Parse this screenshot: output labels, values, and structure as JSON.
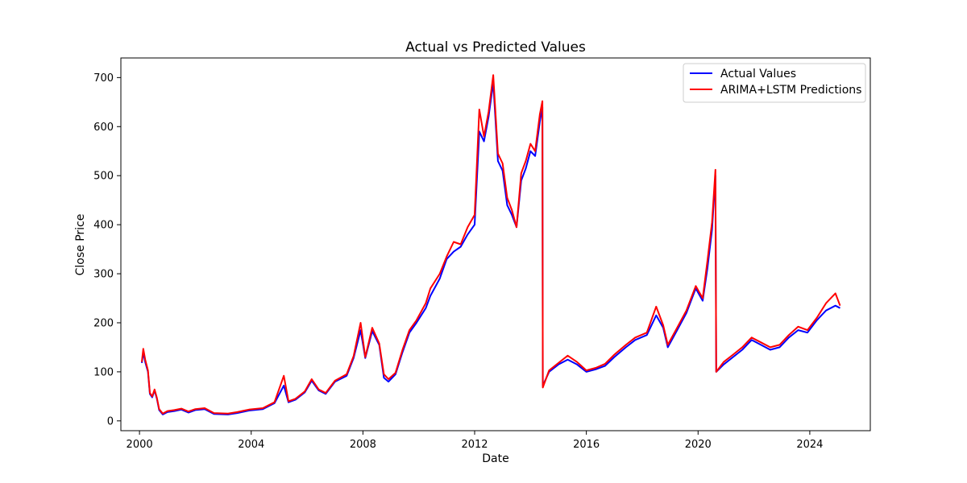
{
  "chart_data": {
    "type": "line",
    "title": "Actual vs Predicted Values",
    "xlabel": "Date",
    "ylabel": "Close Price",
    "xlim": [
      "1999-05-01",
      "2026-03-01"
    ],
    "ylim": [
      -20,
      740
    ],
    "x_ticks": [
      "2000",
      "2004",
      "2008",
      "2012",
      "2016",
      "2020",
      "2024"
    ],
    "y_ticks": [
      0,
      100,
      200,
      300,
      400,
      500,
      600,
      700
    ],
    "grid": false,
    "legend_position": "top-right",
    "series": [
      {
        "name": "Actual Values",
        "color": "#0000ff",
        "points": [
          [
            "2000-02-01",
            118
          ],
          [
            "2000-02-20",
            140
          ],
          [
            "2000-03-15",
            120
          ],
          [
            "2000-04-20",
            100
          ],
          [
            "2000-05-15",
            55
          ],
          [
            "2000-06-15",
            48
          ],
          [
            "2000-07-15",
            62
          ],
          [
            "2000-08-15",
            45
          ],
          [
            "2000-09-15",
            22
          ],
          [
            "2000-11-01",
            13
          ],
          [
            "2001-01-01",
            18
          ],
          [
            "2001-04-01",
            20
          ],
          [
            "2001-07-01",
            23
          ],
          [
            "2001-10-01",
            17
          ],
          [
            "2002-01-01",
            22
          ],
          [
            "2002-05-01",
            24
          ],
          [
            "2002-09-01",
            14
          ],
          [
            "2003-03-01",
            13
          ],
          [
            "2003-07-01",
            16
          ],
          [
            "2003-12-01",
            21
          ],
          [
            "2004-06-01",
            24
          ],
          [
            "2004-11-01",
            36
          ],
          [
            "2005-03-01",
            72
          ],
          [
            "2005-05-01",
            38
          ],
          [
            "2005-08-01",
            43
          ],
          [
            "2005-12-01",
            58
          ],
          [
            "2006-03-01",
            82
          ],
          [
            "2006-06-01",
            62
          ],
          [
            "2006-09-01",
            55
          ],
          [
            "2007-01-01",
            80
          ],
          [
            "2007-06-01",
            92
          ],
          [
            "2007-09-01",
            128
          ],
          [
            "2007-12-01",
            185
          ],
          [
            "2008-02-01",
            128
          ],
          [
            "2008-05-01",
            183
          ],
          [
            "2008-08-01",
            155
          ],
          [
            "2008-10-01",
            88
          ],
          [
            "2008-12-01",
            80
          ],
          [
            "2009-03-01",
            95
          ],
          [
            "2009-06-01",
            140
          ],
          [
            "2009-09-01",
            180
          ],
          [
            "2009-12-01",
            200
          ],
          [
            "2010-04-01",
            230
          ],
          [
            "2010-06-01",
            255
          ],
          [
            "2010-10-01",
            290
          ],
          [
            "2011-01-01",
            330
          ],
          [
            "2011-04-01",
            345
          ],
          [
            "2011-07-01",
            355
          ],
          [
            "2011-10-01",
            380
          ],
          [
            "2012-01-01",
            400
          ],
          [
            "2012-03-01",
            590
          ],
          [
            "2012-05-01",
            570
          ],
          [
            "2012-07-01",
            620
          ],
          [
            "2012-09-01",
            690
          ],
          [
            "2012-11-01",
            530
          ],
          [
            "2013-01-01",
            510
          ],
          [
            "2013-03-01",
            440
          ],
          [
            "2013-05-01",
            420
          ],
          [
            "2013-07-01",
            395
          ],
          [
            "2013-09-01",
            490
          ],
          [
            "2013-11-01",
            515
          ],
          [
            "2014-01-01",
            550
          ],
          [
            "2014-03-01",
            540
          ],
          [
            "2014-05-01",
            610
          ],
          [
            "2014-06-05",
            640
          ],
          [
            "2014-06-10",
            72
          ],
          [
            "2014-09-01",
            100
          ],
          [
            "2015-01-01",
            115
          ],
          [
            "2015-05-01",
            125
          ],
          [
            "2015-09-01",
            115
          ],
          [
            "2016-01-01",
            100
          ],
          [
            "2016-05-01",
            105
          ],
          [
            "2016-09-01",
            112
          ],
          [
            "2017-01-01",
            130
          ],
          [
            "2017-06-01",
            150
          ],
          [
            "2017-10-01",
            165
          ],
          [
            "2018-03-01",
            175
          ],
          [
            "2018-07-01",
            215
          ],
          [
            "2018-10-01",
            190
          ],
          [
            "2018-12-01",
            150
          ],
          [
            "2019-04-01",
            185
          ],
          [
            "2019-08-01",
            220
          ],
          [
            "2019-12-01",
            270
          ],
          [
            "2020-03-01",
            245
          ],
          [
            "2020-05-01",
            310
          ],
          [
            "2020-07-01",
            390
          ],
          [
            "2020-08-15",
            500
          ],
          [
            "2020-08-25",
            100
          ],
          [
            "2020-12-01",
            115
          ],
          [
            "2021-04-01",
            130
          ],
          [
            "2021-08-01",
            145
          ],
          [
            "2021-12-01",
            165
          ],
          [
            "2022-04-01",
            155
          ],
          [
            "2022-08-01",
            145
          ],
          [
            "2022-12-01",
            150
          ],
          [
            "2023-04-01",
            170
          ],
          [
            "2023-08-01",
            185
          ],
          [
            "2023-12-01",
            180
          ],
          [
            "2024-04-01",
            205
          ],
          [
            "2024-08-01",
            225
          ],
          [
            "2024-12-01",
            235
          ],
          [
            "2025-02-01",
            230
          ]
        ]
      },
      {
        "name": "ARIMA+LSTM Predictions",
        "color": "#ff0000",
        "points": [
          [
            "2000-02-01",
            120
          ],
          [
            "2000-02-20",
            147
          ],
          [
            "2000-03-15",
            125
          ],
          [
            "2000-04-20",
            103
          ],
          [
            "2000-05-15",
            57
          ],
          [
            "2000-06-15",
            50
          ],
          [
            "2000-07-15",
            64
          ],
          [
            "2000-08-15",
            47
          ],
          [
            "2000-09-15",
            24
          ],
          [
            "2000-11-01",
            15
          ],
          [
            "2001-01-01",
            20
          ],
          [
            "2001-04-01",
            22
          ],
          [
            "2001-07-01",
            25
          ],
          [
            "2001-10-01",
            19
          ],
          [
            "2002-01-01",
            24
          ],
          [
            "2002-05-01",
            26
          ],
          [
            "2002-09-01",
            16
          ],
          [
            "2003-03-01",
            15
          ],
          [
            "2003-07-01",
            18
          ],
          [
            "2003-12-01",
            23
          ],
          [
            "2004-06-01",
            26
          ],
          [
            "2004-11-01",
            38
          ],
          [
            "2005-03-01",
            92
          ],
          [
            "2005-05-01",
            40
          ],
          [
            "2005-08-01",
            45
          ],
          [
            "2005-12-01",
            60
          ],
          [
            "2006-03-01",
            85
          ],
          [
            "2006-06-01",
            64
          ],
          [
            "2006-09-01",
            57
          ],
          [
            "2007-01-01",
            82
          ],
          [
            "2007-06-01",
            95
          ],
          [
            "2007-09-01",
            132
          ],
          [
            "2007-12-01",
            200
          ],
          [
            "2008-02-01",
            130
          ],
          [
            "2008-05-01",
            190
          ],
          [
            "2008-08-01",
            158
          ],
          [
            "2008-10-01",
            95
          ],
          [
            "2008-12-01",
            85
          ],
          [
            "2009-03-01",
            98
          ],
          [
            "2009-06-01",
            145
          ],
          [
            "2009-09-01",
            185
          ],
          [
            "2009-12-01",
            205
          ],
          [
            "2010-04-01",
            240
          ],
          [
            "2010-06-01",
            270
          ],
          [
            "2010-10-01",
            300
          ],
          [
            "2011-01-01",
            335
          ],
          [
            "2011-04-01",
            365
          ],
          [
            "2011-07-01",
            360
          ],
          [
            "2011-10-01",
            395
          ],
          [
            "2012-01-01",
            420
          ],
          [
            "2012-03-01",
            635
          ],
          [
            "2012-05-01",
            580
          ],
          [
            "2012-07-01",
            630
          ],
          [
            "2012-09-01",
            705
          ],
          [
            "2012-11-01",
            545
          ],
          [
            "2013-01-01",
            525
          ],
          [
            "2013-03-01",
            455
          ],
          [
            "2013-05-01",
            430
          ],
          [
            "2013-07-01",
            395
          ],
          [
            "2013-09-01",
            505
          ],
          [
            "2013-11-01",
            530
          ],
          [
            "2014-01-01",
            565
          ],
          [
            "2014-03-01",
            550
          ],
          [
            "2014-05-01",
            625
          ],
          [
            "2014-06-05",
            652
          ],
          [
            "2014-06-10",
            68
          ],
          [
            "2014-09-01",
            103
          ],
          [
            "2015-01-01",
            118
          ],
          [
            "2015-05-01",
            133
          ],
          [
            "2015-09-01",
            120
          ],
          [
            "2016-01-01",
            103
          ],
          [
            "2016-05-01",
            108
          ],
          [
            "2016-09-01",
            116
          ],
          [
            "2017-01-01",
            135
          ],
          [
            "2017-06-01",
            155
          ],
          [
            "2017-10-01",
            170
          ],
          [
            "2018-03-01",
            180
          ],
          [
            "2018-07-01",
            233
          ],
          [
            "2018-10-01",
            195
          ],
          [
            "2018-12-01",
            155
          ],
          [
            "2019-04-01",
            190
          ],
          [
            "2019-08-01",
            225
          ],
          [
            "2019-12-01",
            275
          ],
          [
            "2020-03-01",
            250
          ],
          [
            "2020-05-01",
            325
          ],
          [
            "2020-07-01",
            405
          ],
          [
            "2020-08-15",
            512
          ],
          [
            "2020-08-25",
            100
          ],
          [
            "2020-12-01",
            120
          ],
          [
            "2021-04-01",
            135
          ],
          [
            "2021-08-01",
            150
          ],
          [
            "2021-12-01",
            170
          ],
          [
            "2022-04-01",
            160
          ],
          [
            "2022-08-01",
            150
          ],
          [
            "2022-12-01",
            155
          ],
          [
            "2023-04-01",
            175
          ],
          [
            "2023-08-01",
            192
          ],
          [
            "2023-12-01",
            185
          ],
          [
            "2024-04-01",
            210
          ],
          [
            "2024-08-01",
            240
          ],
          [
            "2024-12-01",
            260
          ],
          [
            "2025-02-01",
            235
          ]
        ]
      }
    ]
  }
}
